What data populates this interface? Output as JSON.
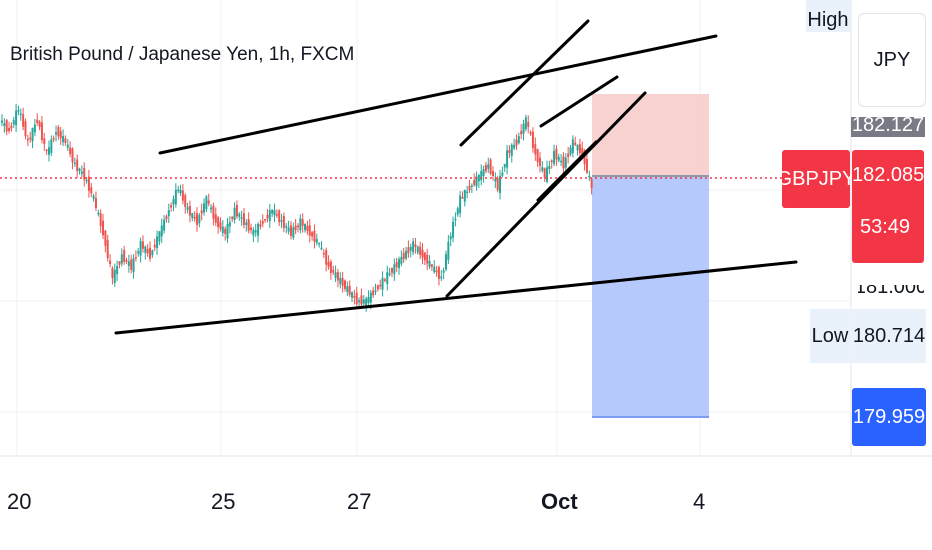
{
  "chart_title": "British Pound / Japanese Yen, 1h, FXCM",
  "currency_label": "JPY",
  "symbol_badge": "GBPJPY",
  "price_axis": {
    "high_label": "High",
    "high_price": "182.127",
    "current_price": "182.085",
    "countdown": "53:49",
    "tick_181": "181.000",
    "low_label": "Low",
    "low_price": "180.714",
    "target_price": "179.959"
  },
  "time_axis": [
    "20",
    "25",
    "27",
    "Oct",
    "4"
  ],
  "colors": {
    "up_candle": "#26a69a",
    "down_candle": "#ef5350",
    "current_price_badge": "#f23645",
    "target_badge": "#2962ff",
    "stop_zone": "#f7c9c9",
    "profit_zone": "#a8c0fb",
    "trendline": "#000000"
  },
  "chart_data": {
    "type": "candlestick",
    "series": [
      {
        "name": "GBPJPY",
        "values": [
          182.6,
          182.5,
          182.7,
          182.4,
          182.6,
          182.3,
          182.5,
          182.4,
          182.2,
          182.1,
          181.9,
          181.6,
          181.2,
          181.4,
          181.3,
          181.5,
          181.4,
          181.6,
          181.8,
          182.0,
          181.8,
          181.7,
          181.9,
          181.7,
          181.6,
          181.8,
          181.7,
          181.6,
          181.7,
          181.8,
          181.7,
          181.6,
          181.7,
          181.6,
          181.5,
          181.3,
          181.2,
          181.1,
          181.0,
          181.0,
          181.1,
          181.2,
          181.3,
          181.4,
          181.5,
          181.4,
          181.3,
          181.2,
          181.6,
          181.9,
          182.0,
          182.1,
          182.2,
          182.0,
          182.3,
          182.4,
          182.6,
          182.3,
          182.1,
          182.3,
          182.2,
          182.4,
          182.3,
          182.0
        ]
      }
    ],
    "levels": [
      182.127,
      182.085,
      181.0,
      180.714,
      179.959
    ]
  }
}
